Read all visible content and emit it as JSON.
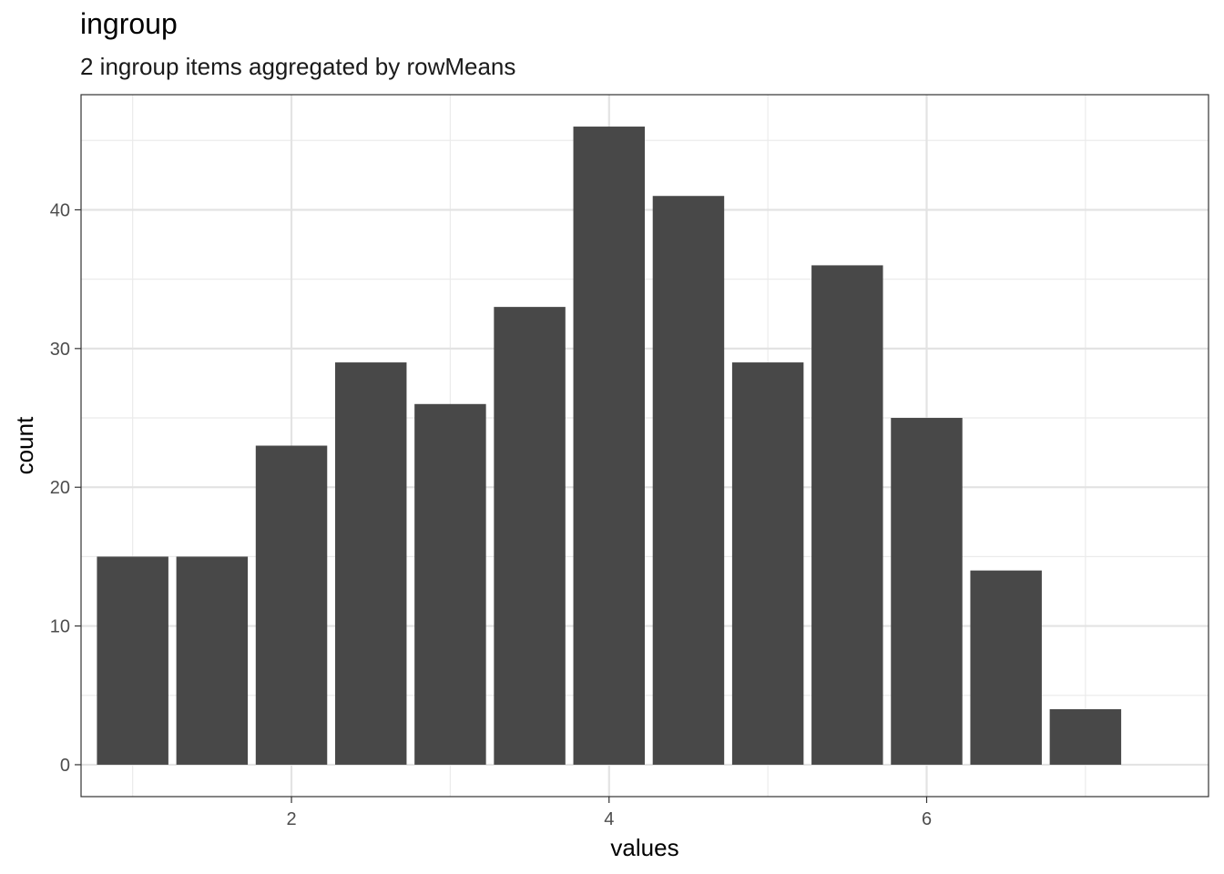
{
  "chart_data": {
    "type": "bar",
    "title": "ingroup",
    "subtitle": "2 ingroup items aggregated by rowMeans",
    "xlabel": "values",
    "ylabel": "count",
    "x": [
      1,
      1.5,
      2,
      2.5,
      3,
      3.5,
      4,
      4.5,
      5,
      5.5,
      6,
      6.5,
      7
    ],
    "values": [
      15,
      15,
      23,
      29,
      26,
      33,
      46,
      41,
      29,
      36,
      25,
      14,
      4
    ],
    "xlim": [
      0.675,
      7.775
    ],
    "ylim": [
      -2.3,
      48.3
    ],
    "x_ticks": [
      2,
      4,
      6
    ],
    "y_ticks": [
      0,
      10,
      20,
      30,
      40
    ],
    "bar_color": "#484848",
    "grid": true
  }
}
